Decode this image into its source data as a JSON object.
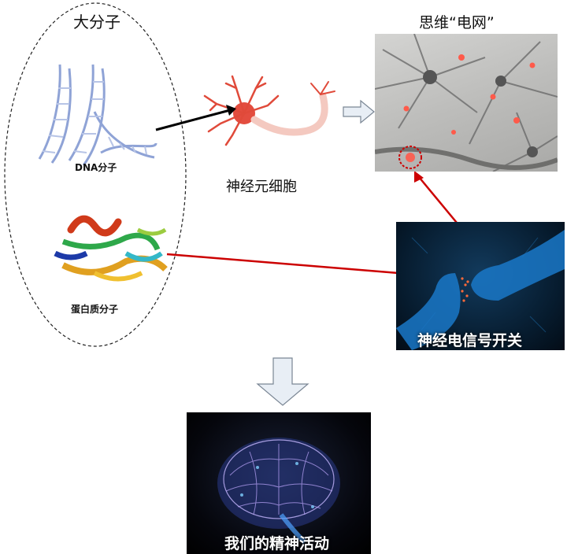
{
  "macromolecule": {
    "title": "大分子",
    "dna_label": "DNA分子",
    "protein_label": "蛋白质分子"
  },
  "neuron": {
    "label": "神经元细胞"
  },
  "network": {
    "title": "思维“电网”"
  },
  "synapse": {
    "caption": "神经电信号开关"
  },
  "brain": {
    "caption": "我们的精神活动"
  },
  "colors": {
    "red_arrow": "#cc0000",
    "black_arrow": "#000000",
    "hollow_arrow_fill": "#e8eef5",
    "hollow_arrow_stroke": "#7a8694"
  }
}
